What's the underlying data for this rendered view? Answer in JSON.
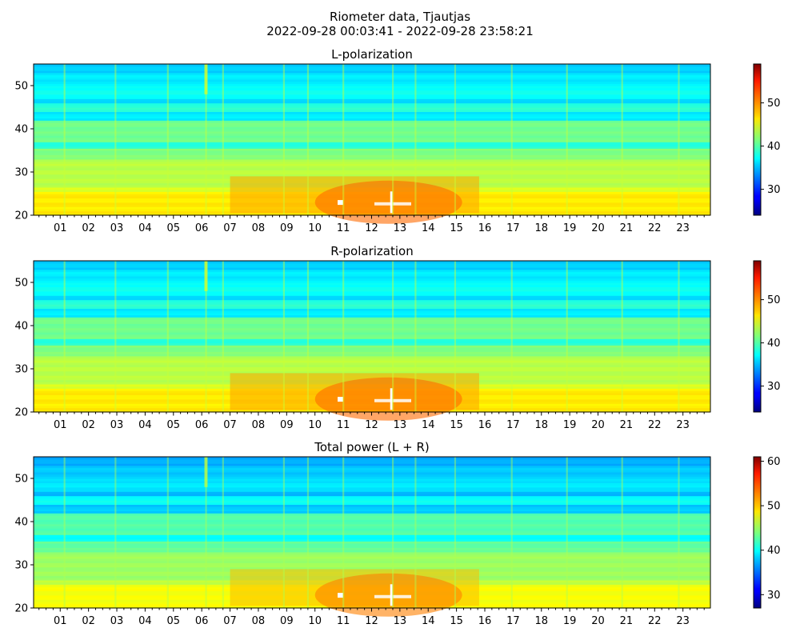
{
  "figure": {
    "title_line1": "Riometer data, Tjautjas",
    "title_line2": "2022-09-28 00:03:41 - 2022-09-28 23:58:21"
  },
  "chart_data": [
    {
      "type": "heatmap",
      "title": "L-polarization",
      "xlabel": "",
      "ylabel": "",
      "x_ticklabels": [
        "01",
        "02",
        "03",
        "04",
        "05",
        "06",
        "07",
        "08",
        "09",
        "10",
        "11",
        "12",
        "13",
        "14",
        "15",
        "16",
        "17",
        "18",
        "19",
        "20",
        "21",
        "22",
        "23"
      ],
      "x_range_hours": [
        0.06,
        23.97
      ],
      "y_range": [
        20,
        55
      ],
      "y_ticks": [
        20,
        30,
        40,
        50
      ],
      "colormap": "jet",
      "colorbar_range": [
        24,
        59
      ],
      "colorbar_ticks": [
        30,
        40,
        50
      ]
    },
    {
      "type": "heatmap",
      "title": "R-polarization",
      "xlabel": "",
      "ylabel": "",
      "x_ticklabels": [
        "01",
        "02",
        "03",
        "04",
        "05",
        "06",
        "07",
        "08",
        "09",
        "10",
        "11",
        "12",
        "13",
        "14",
        "15",
        "16",
        "17",
        "18",
        "19",
        "20",
        "21",
        "22",
        "23"
      ],
      "x_range_hours": [
        0.06,
        23.97
      ],
      "y_range": [
        20,
        55
      ],
      "y_ticks": [
        20,
        30,
        40,
        50
      ],
      "colormap": "jet",
      "colorbar_range": [
        24,
        59
      ],
      "colorbar_ticks": [
        30,
        40,
        50
      ]
    },
    {
      "type": "heatmap",
      "title": "Total power (L + R)",
      "xlabel": "",
      "ylabel": "",
      "x_ticklabels": [
        "01",
        "02",
        "03",
        "04",
        "05",
        "06",
        "07",
        "08",
        "09",
        "10",
        "11",
        "12",
        "13",
        "14",
        "15",
        "16",
        "17",
        "18",
        "19",
        "20",
        "21",
        "22",
        "23"
      ],
      "x_range_hours": [
        0.06,
        23.97
      ],
      "y_range": [
        20,
        55
      ],
      "y_ticks": [
        20,
        30,
        40,
        50
      ],
      "colormap": "jet",
      "colorbar_range": [
        27,
        61
      ],
      "colorbar_ticks": [
        30,
        40,
        50,
        60
      ]
    }
  ]
}
